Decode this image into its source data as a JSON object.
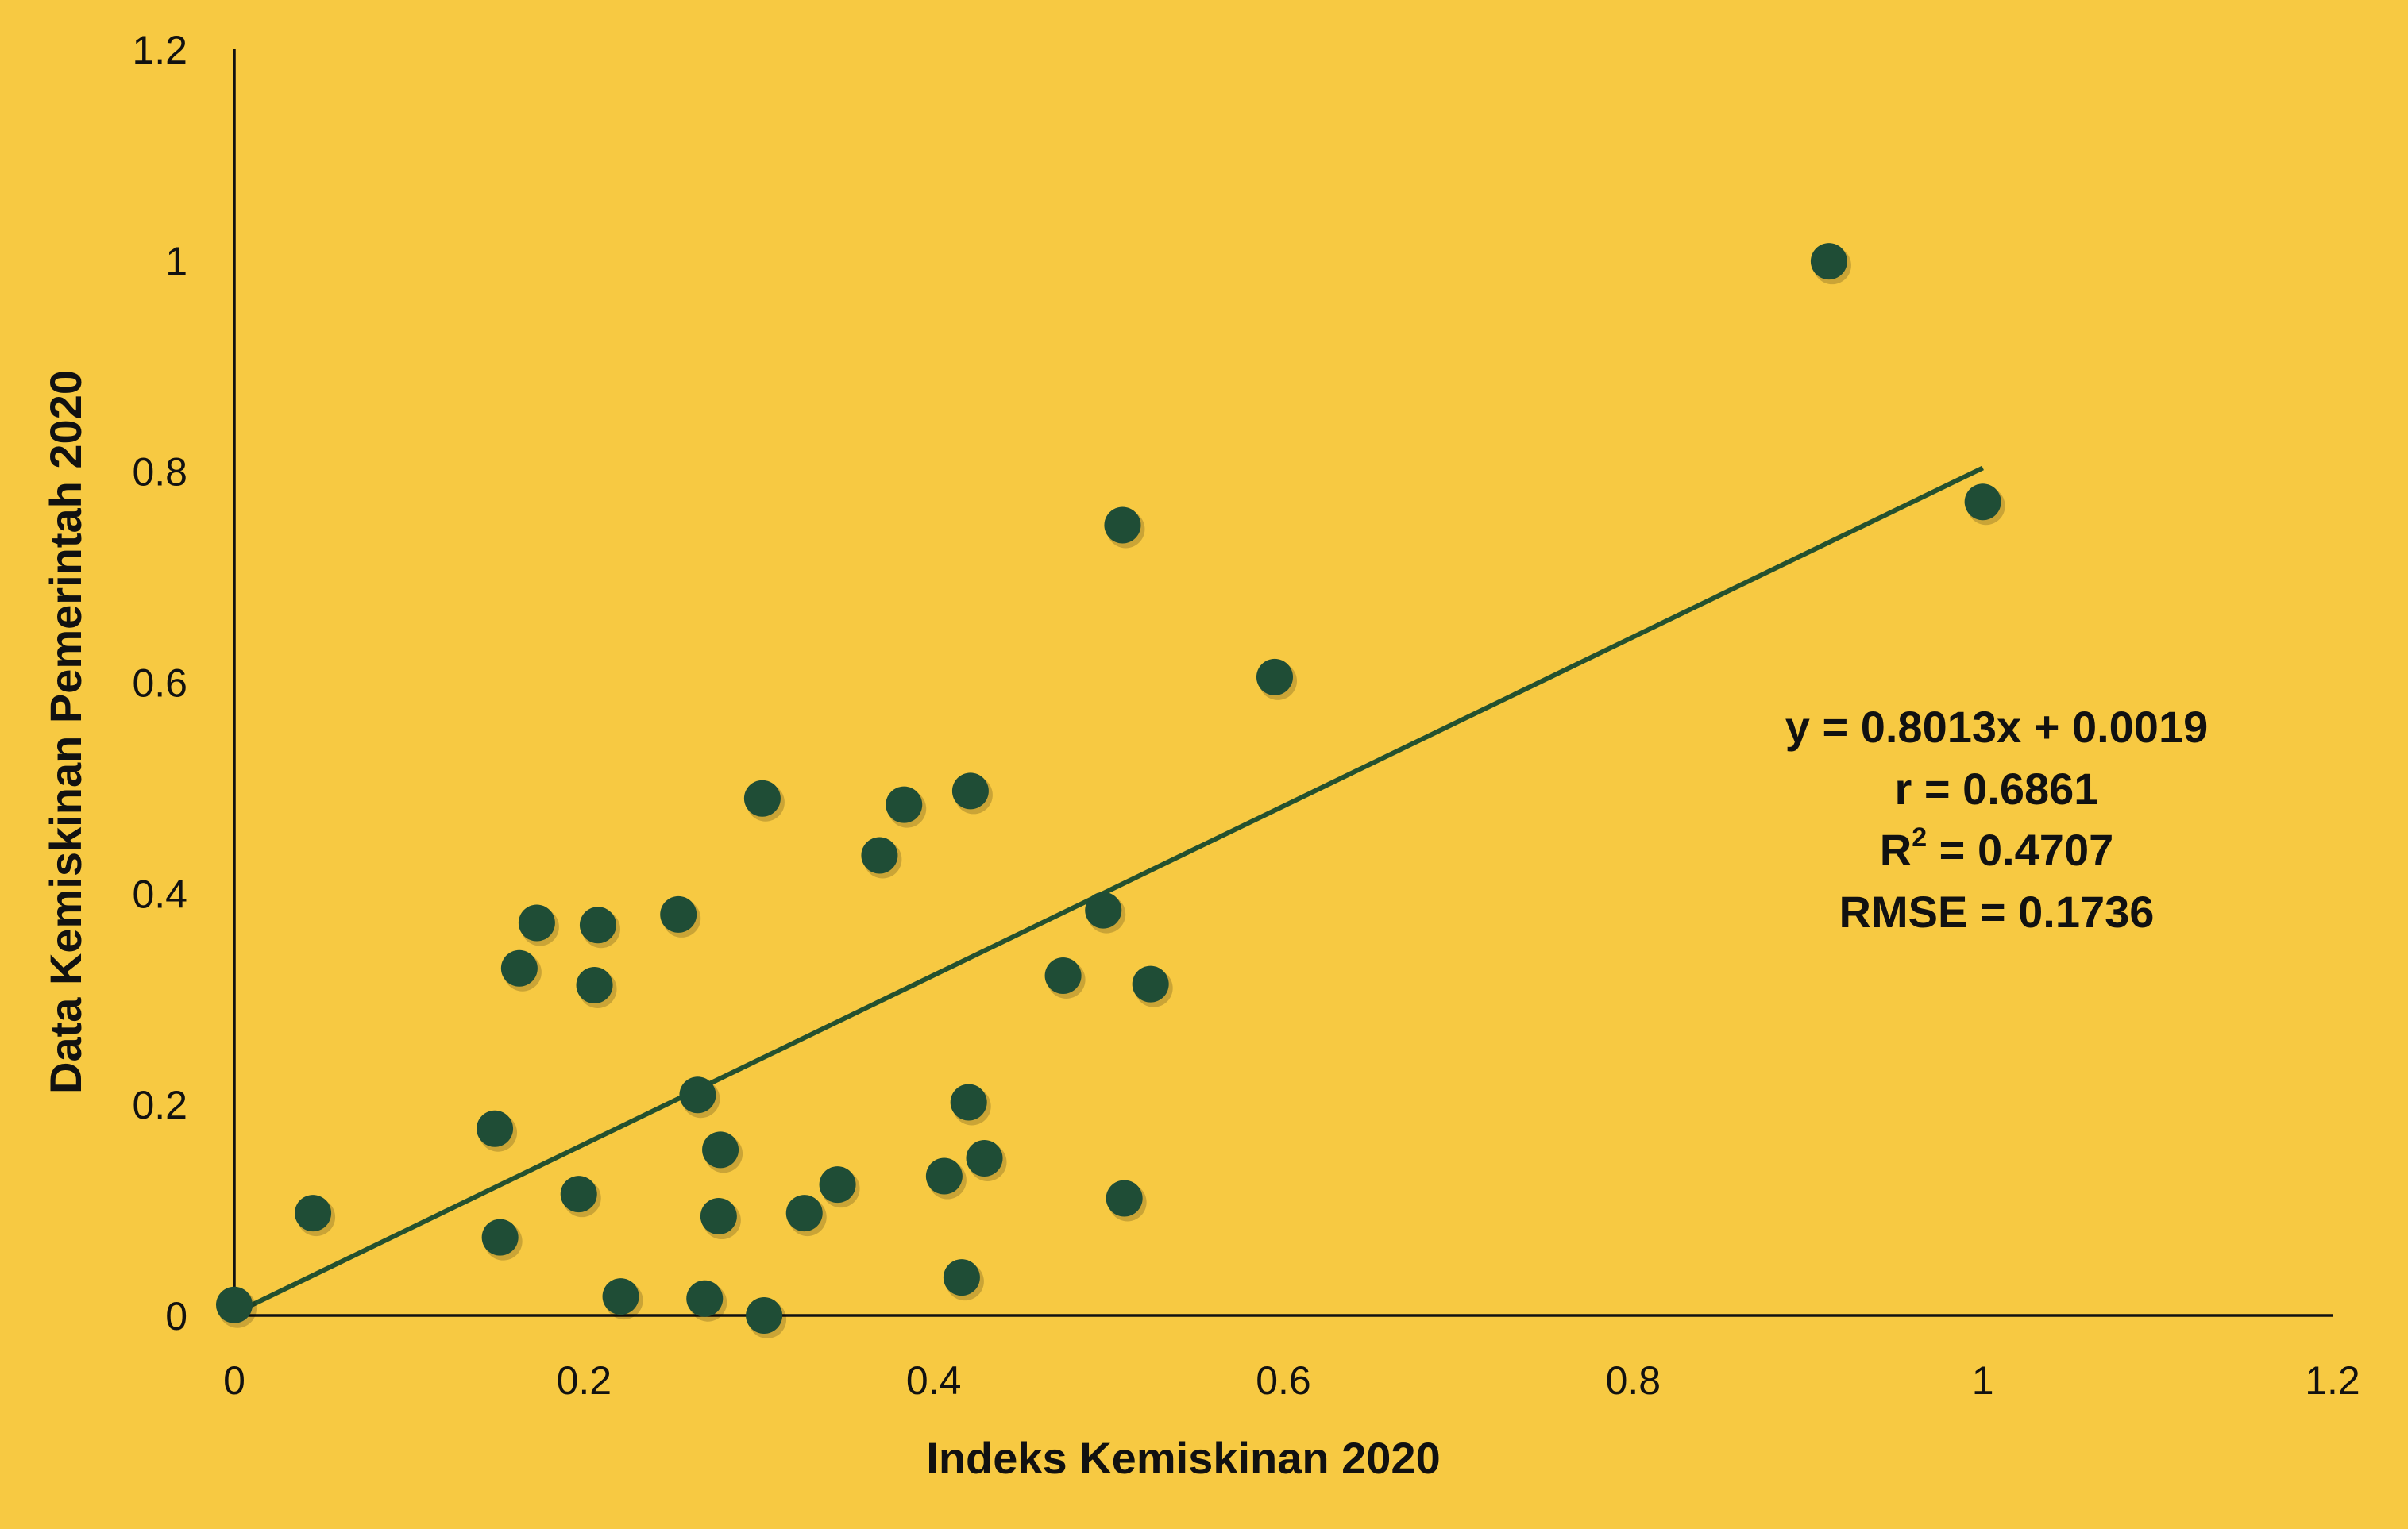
{
  "colors": {
    "background": "#F7C942",
    "point": "#1F4D36",
    "trendline": "#24512F",
    "axis": "#111111",
    "text": "#111111"
  },
  "chart_data": {
    "type": "scatter",
    "xlabel": "Indeks Kemiskinan 2020",
    "ylabel": "Data Kemiskinan Pemerintah 2020",
    "xlim": [
      0,
      1.2
    ],
    "ylim": [
      0,
      1.2
    ],
    "x_ticks": [
      "0",
      "0.2",
      "0.4",
      "0.6",
      "0.8",
      "1",
      "1.2"
    ],
    "y_ticks": [
      "0",
      "0.2",
      "0.4",
      "0.6",
      "0.8",
      "1",
      "1.2"
    ],
    "grid": false,
    "legend": "none",
    "points": [
      {
        "x": 0.0,
        "y": 0.01
      },
      {
        "x": 0.045,
        "y": 0.097
      },
      {
        "x": 0.149,
        "y": 0.177
      },
      {
        "x": 0.152,
        "y": 0.074
      },
      {
        "x": 0.163,
        "y": 0.329
      },
      {
        "x": 0.173,
        "y": 0.372
      },
      {
        "x": 0.197,
        "y": 0.115
      },
      {
        "x": 0.206,
        "y": 0.313
      },
      {
        "x": 0.208,
        "y": 0.37
      },
      {
        "x": 0.221,
        "y": 0.018
      },
      {
        "x": 0.254,
        "y": 0.38
      },
      {
        "x": 0.265,
        "y": 0.209
      },
      {
        "x": 0.269,
        "y": 0.016
      },
      {
        "x": 0.277,
        "y": 0.094
      },
      {
        "x": 0.278,
        "y": 0.157
      },
      {
        "x": 0.302,
        "y": 0.49
      },
      {
        "x": 0.303,
        "y": 0.0
      },
      {
        "x": 0.326,
        "y": 0.097
      },
      {
        "x": 0.345,
        "y": 0.124
      },
      {
        "x": 0.369,
        "y": 0.436
      },
      {
        "x": 0.383,
        "y": 0.484
      },
      {
        "x": 0.406,
        "y": 0.132
      },
      {
        "x": 0.416,
        "y": 0.036
      },
      {
        "x": 0.42,
        "y": 0.202
      },
      {
        "x": 0.421,
        "y": 0.497
      },
      {
        "x": 0.429,
        "y": 0.149
      },
      {
        "x": 0.474,
        "y": 0.322
      },
      {
        "x": 0.497,
        "y": 0.384
      },
      {
        "x": 0.508,
        "y": 0.749
      },
      {
        "x": 0.509,
        "y": 0.111
      },
      {
        "x": 0.524,
        "y": 0.314
      },
      {
        "x": 0.595,
        "y": 0.605
      },
      {
        "x": 0.912,
        "y": 0.999
      },
      {
        "x": 1.0,
        "y": 0.771
      }
    ],
    "trendline": {
      "slope": 0.8013,
      "intercept": 0.0019,
      "x_range": [
        0,
        1
      ]
    },
    "annotations": {
      "equation": "y = 0.8013x + 0.0019",
      "r": "r = 0.6861",
      "r2_prefix": "R",
      "r2_superscript": "2",
      "r2_value": " = 0.4707",
      "rmse": "RMSE = 0.1736"
    }
  }
}
